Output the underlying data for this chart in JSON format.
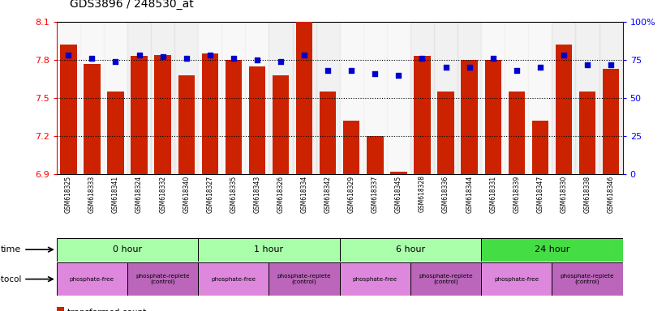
{
  "title": "GDS3896 / 248530_at",
  "samples": [
    "GSM618325",
    "GSM618333",
    "GSM618341",
    "GSM618324",
    "GSM618332",
    "GSM618340",
    "GSM618327",
    "GSM618335",
    "GSM618343",
    "GSM618326",
    "GSM618334",
    "GSM618342",
    "GSM618329",
    "GSM618337",
    "GSM618345",
    "GSM618328",
    "GSM618336",
    "GSM618344",
    "GSM618331",
    "GSM618339",
    "GSM618347",
    "GSM618330",
    "GSM618338",
    "GSM618346"
  ],
  "transformed_count": [
    7.92,
    7.77,
    7.55,
    7.83,
    7.84,
    7.68,
    7.85,
    7.8,
    7.75,
    7.68,
    8.1,
    7.55,
    7.32,
    7.2,
    6.92,
    7.83,
    7.55,
    7.8,
    7.8,
    7.55,
    7.32,
    7.92,
    7.55,
    7.73
  ],
  "percentile_rank": [
    78,
    76,
    74,
    78,
    77,
    76,
    78,
    76,
    75,
    74,
    78,
    68,
    68,
    66,
    65,
    76,
    70,
    70,
    76,
    68,
    70,
    78,
    72,
    72
  ],
  "ylim_left": [
    6.9,
    8.1
  ],
  "ylim_right": [
    0,
    100
  ],
  "yticks_left": [
    6.9,
    7.2,
    7.5,
    7.8,
    8.1
  ],
  "yticks_right": [
    0,
    25,
    50,
    75,
    100
  ],
  "ytick_labels_left": [
    "6.9",
    "7.2",
    "7.5",
    "7.8",
    "8.1"
  ],
  "ytick_labels_right": [
    "0",
    "25",
    "50",
    "75",
    "100%"
  ],
  "hlines": [
    7.2,
    7.5,
    7.8
  ],
  "bar_color": "#cc2200",
  "scatter_color": "#0000cc",
  "time_groups": [
    {
      "label": "0 hour",
      "start": 0,
      "end": 6
    },
    {
      "label": "1 hour",
      "start": 6,
      "end": 12
    },
    {
      "label": "6 hour",
      "start": 12,
      "end": 18
    },
    {
      "label": "24 hour",
      "start": 18,
      "end": 24
    }
  ],
  "time_colors": [
    "#aaffaa",
    "#aaffaa",
    "#aaffaa",
    "#44dd44"
  ],
  "protocol_groups": [
    {
      "label": "phosphate-free",
      "start": 0,
      "end": 3
    },
    {
      "label": "phosphate-replete\n(control)",
      "start": 3,
      "end": 6
    },
    {
      "label": "phosphate-free",
      "start": 6,
      "end": 9
    },
    {
      "label": "phosphate-replete\n(control)",
      "start": 9,
      "end": 12
    },
    {
      "label": "phosphate-free",
      "start": 12,
      "end": 15
    },
    {
      "label": "phosphate-replete\n(control)",
      "start": 15,
      "end": 18
    },
    {
      "label": "phosphate-free",
      "start": 18,
      "end": 21
    },
    {
      "label": "phosphate-replete\n(control)",
      "start": 21,
      "end": 24
    }
  ],
  "prot_free_color": "#dd88dd",
  "prot_replete_color": "#bb66bb",
  "col_bg_light": "#eeeeee",
  "col_bg_dark": "#dddddd"
}
